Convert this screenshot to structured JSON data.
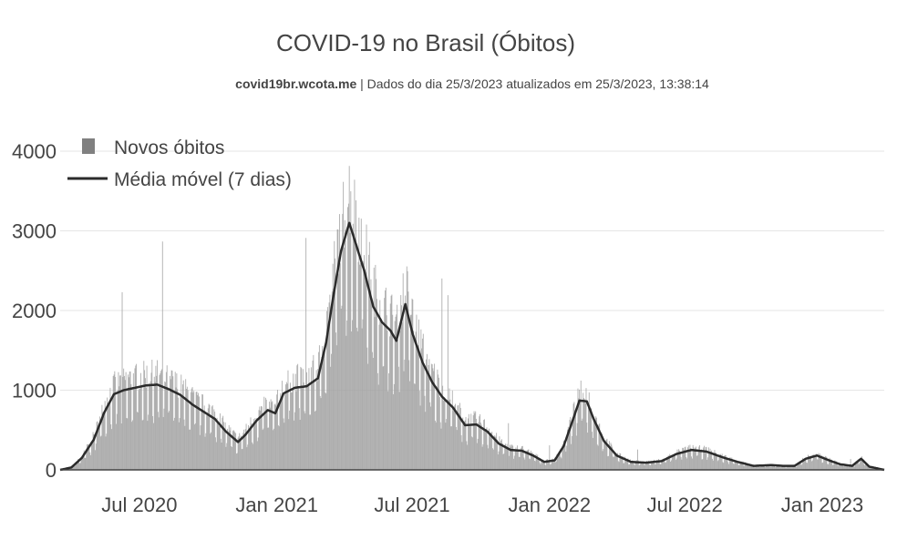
{
  "chart_data": {
    "type": "bar",
    "title": "COVID-19 no Brasil (Óbitos)",
    "subtitle_source": "covid19br.wcota.me",
    "subtitle_rest": " | Dados do dia 25/3/2023 atualizados em 25/3/2023, 13:38:14",
    "legend": [
      "Novos óbitos",
      "Média móvel (7 dias)"
    ],
    "legend_position": "top-left",
    "grid": true,
    "x_start": "2020-03-17",
    "x_end": "2023-03-25",
    "xticks": [
      {
        "date": "2020-07-01",
        "label": "Jul 2020"
      },
      {
        "date": "2021-01-01",
        "label": "Jan 2021"
      },
      {
        "date": "2021-07-01",
        "label": "Jul 2021"
      },
      {
        "date": "2022-01-01",
        "label": "Jan 2022"
      },
      {
        "date": "2022-07-01",
        "label": "Jul 2022"
      },
      {
        "date": "2023-01-01",
        "label": "Jan 2023"
      }
    ],
    "yticks": [
      0,
      1000,
      2000,
      3000,
      4000
    ],
    "ylim": [
      0,
      4200
    ],
    "colors": {
      "bars": "#a0a0a0",
      "line": "#2b2b2b",
      "grid": "#e6e6e6",
      "axis": "#444444"
    },
    "moving_average": [
      [
        "2020-03-17",
        0
      ],
      [
        "2020-04-01",
        30
      ],
      [
        "2020-04-15",
        150
      ],
      [
        "2020-05-01",
        380
      ],
      [
        "2020-05-15",
        720
      ],
      [
        "2020-05-28",
        950
      ],
      [
        "2020-06-10",
        1000
      ],
      [
        "2020-06-25",
        1030
      ],
      [
        "2020-07-10",
        1060
      ],
      [
        "2020-07-25",
        1070
      ],
      [
        "2020-08-10",
        1010
      ],
      [
        "2020-08-25",
        940
      ],
      [
        "2020-09-10",
        820
      ],
      [
        "2020-09-25",
        730
      ],
      [
        "2020-10-10",
        640
      ],
      [
        "2020-10-25",
        480
      ],
      [
        "2020-11-10",
        350
      ],
      [
        "2020-11-20",
        440
      ],
      [
        "2020-12-05",
        620
      ],
      [
        "2020-12-20",
        750
      ],
      [
        "2020-12-30",
        710
      ],
      [
        "2021-01-10",
        960
      ],
      [
        "2021-01-25",
        1030
      ],
      [
        "2021-02-10",
        1050
      ],
      [
        "2021-02-25",
        1150
      ],
      [
        "2021-03-08",
        1600
      ],
      [
        "2021-03-18",
        2200
      ],
      [
        "2021-03-28",
        2750
      ],
      [
        "2021-04-08",
        3100
      ],
      [
        "2021-04-18",
        2800
      ],
      [
        "2021-04-28",
        2500
      ],
      [
        "2021-05-10",
        2050
      ],
      [
        "2021-05-22",
        1850
      ],
      [
        "2021-06-02",
        1750
      ],
      [
        "2021-06-10",
        1620
      ],
      [
        "2021-06-22",
        2080
      ],
      [
        "2021-07-02",
        1700
      ],
      [
        "2021-07-15",
        1350
      ],
      [
        "2021-07-28",
        1100
      ],
      [
        "2021-08-10",
        920
      ],
      [
        "2021-08-25",
        780
      ],
      [
        "2021-09-10",
        560
      ],
      [
        "2021-09-25",
        570
      ],
      [
        "2021-10-10",
        480
      ],
      [
        "2021-10-25",
        330
      ],
      [
        "2021-11-10",
        250
      ],
      [
        "2021-11-25",
        240
      ],
      [
        "2021-12-10",
        180
      ],
      [
        "2021-12-25",
        100
      ],
      [
        "2022-01-08",
        120
      ],
      [
        "2022-01-20",
        300
      ],
      [
        "2022-02-01",
        620
      ],
      [
        "2022-02-10",
        870
      ],
      [
        "2022-02-20",
        860
      ],
      [
        "2022-03-01",
        640
      ],
      [
        "2022-03-15",
        360
      ],
      [
        "2022-04-01",
        180
      ],
      [
        "2022-04-20",
        100
      ],
      [
        "2022-05-10",
        90
      ],
      [
        "2022-05-31",
        110
      ],
      [
        "2022-06-20",
        200
      ],
      [
        "2022-07-10",
        250
      ],
      [
        "2022-07-30",
        230
      ],
      [
        "2022-08-20",
        160
      ],
      [
        "2022-09-10",
        100
      ],
      [
        "2022-10-01",
        50
      ],
      [
        "2022-10-25",
        60
      ],
      [
        "2022-11-10",
        50
      ],
      [
        "2022-11-25",
        50
      ],
      [
        "2022-12-10",
        140
      ],
      [
        "2022-12-25",
        180
      ],
      [
        "2023-01-10",
        120
      ],
      [
        "2023-01-25",
        70
      ],
      [
        "2023-02-10",
        50
      ],
      [
        "2023-02-22",
        140
      ],
      [
        "2023-03-05",
        40
      ],
      [
        "2023-03-25",
        0
      ]
    ]
  }
}
